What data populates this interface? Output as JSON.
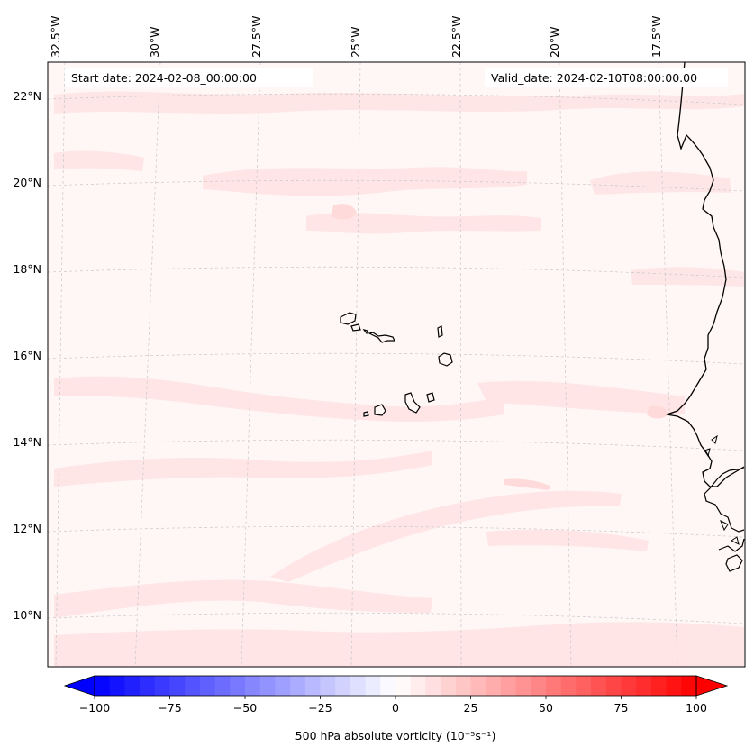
{
  "header": {
    "start_date": "Start date: 2024-02-08_00:00:00",
    "valid_date": "Valid_date: 2024-02-10T08:00:00.00"
  },
  "map": {
    "projection": "conic",
    "gridlines": true,
    "lon_labels": [
      "32.5°W",
      "30°W",
      "27.5°W",
      "25°W",
      "22.5°W",
      "20°W",
      "17.5°W"
    ],
    "lat_labels": [
      "22°N",
      "20°N",
      "18°N",
      "16°N",
      "14°N",
      "12°N",
      "10°N"
    ],
    "features": [
      "Cape Verde islands",
      "West African coastline"
    ]
  },
  "colorbar": {
    "label": "500 hPa absolute vorticity (10⁻⁵s⁻¹)",
    "ticks": [
      "−100",
      "−75",
      "−50",
      "−25",
      "0",
      "25",
      "50",
      "75",
      "100"
    ],
    "min": -100,
    "max": 100,
    "colormap": "bwr",
    "extend": "both"
  },
  "colors": {
    "field_background": "#fff6f6",
    "weak_positive": "#ffe6e6",
    "coast": "#000000",
    "grid": "#c8c8c8"
  }
}
